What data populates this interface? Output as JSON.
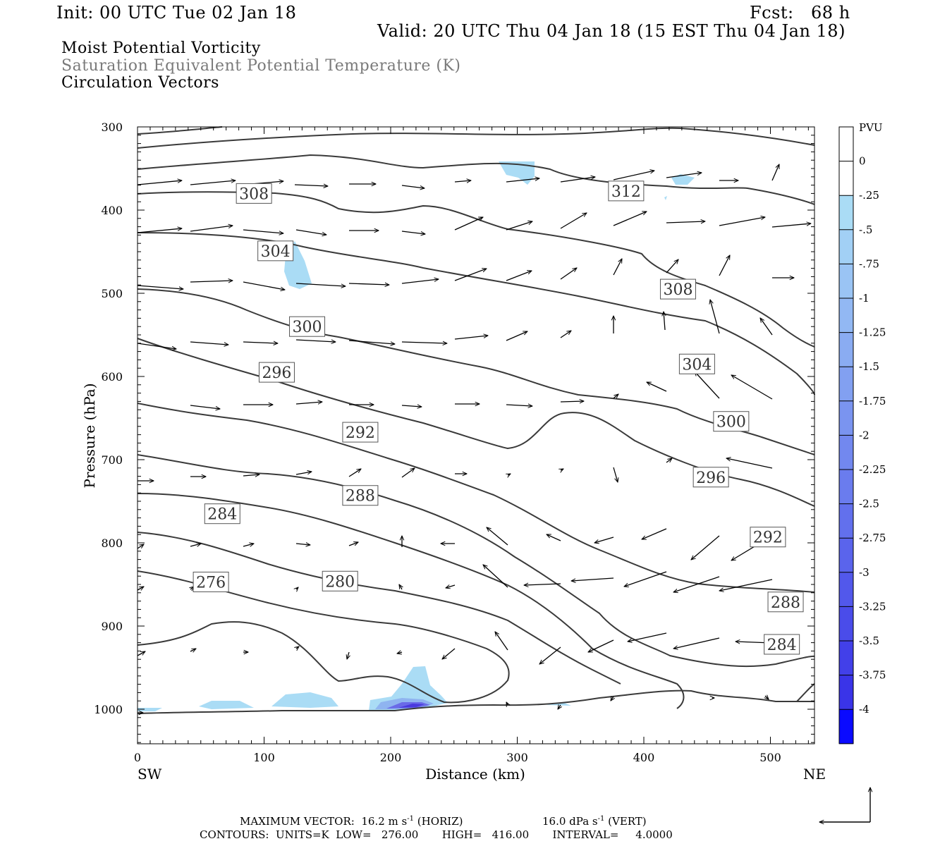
{
  "header": {
    "init": "Init: 00 UTC Tue 02 Jan 18",
    "fcst": "Fcst:   68 h",
    "valid": "Valid: 20 UTC Thu 04 Jan 18 (15 EST Thu 04 Jan 18)"
  },
  "titles": {
    "line1": "Moist Potential Vorticity",
    "line2": "Saturation Equivalent Potential Temperature (K)",
    "line3": "Circulation Vectors"
  },
  "footer": {
    "max_vector_prefix": "MAXIMUM VECTOR:  16.2 m s",
    "max_vector_horiz": "(HORIZ)",
    "max_vector_vert_prefix": "16.0 dPa s",
    "max_vector_vert": "(VERT)",
    "exponent": "-1",
    "contours": "CONTOURS:  UNITS=K  LOW=   276.00       HIGH=   416.00       INTERVAL=     4.0000"
  },
  "colors": {
    "contour": "#3a3a3a",
    "pv_light": "#aadcf5",
    "pv_mid": "#8fb4f0",
    "pv_dark": "#4a3adf"
  },
  "chart_data": {
    "type": "cross-section",
    "xlabel": "Distance (km)",
    "ylabel": "Pressure (hPa)",
    "xlim": [
      0,
      535
    ],
    "ylim": [
      1040,
      300
    ],
    "x_ticks": [
      0,
      100,
      200,
      300,
      400,
      500
    ],
    "y_ticks": [
      300,
      400,
      500,
      600,
      700,
      800,
      900,
      1000
    ],
    "left_end_label": "SW",
    "right_end_label": "NE",
    "colorbar": {
      "units": "PVU",
      "levels": [
        "0",
        "-.25",
        "-.5",
        "-.75",
        "-1",
        "-1.25",
        "-1.5",
        "-1.75",
        "-2",
        "-2.25",
        "-2.5",
        "-2.75",
        "-3",
        "-3.25",
        "-3.5",
        "-3.75",
        "-4"
      ],
      "colors": [
        "#ffffff",
        "#ffffff",
        "#aadcf5",
        "#a2d0f5",
        "#9ac4f4",
        "#92b8f3",
        "#8aacf2",
        "#82a0f1",
        "#7a94f0",
        "#7288ef",
        "#6a7cee",
        "#6270ed",
        "#5a64ec",
        "#5258eb",
        "#4a4cea",
        "#4240e9",
        "#3a34e8",
        "#0a0aff"
      ]
    },
    "contour_labels": [
      {
        "value": "308",
        "x": 92,
        "p": 380
      },
      {
        "value": "312",
        "x": 386,
        "p": 377
      },
      {
        "value": "304",
        "x": 109,
        "p": 449
      },
      {
        "value": "308",
        "x": 427,
        "p": 495
      },
      {
        "value": "300",
        "x": 134,
        "p": 540
      },
      {
        "value": "304",
        "x": 442,
        "p": 585
      },
      {
        "value": "296",
        "x": 110,
        "p": 595
      },
      {
        "value": "300",
        "x": 469,
        "p": 654
      },
      {
        "value": "292",
        "x": 176,
        "p": 667
      },
      {
        "value": "296",
        "x": 453,
        "p": 721
      },
      {
        "value": "288",
        "x": 176,
        "p": 743
      },
      {
        "value": "292",
        "x": 498,
        "p": 793
      },
      {
        "value": "284",
        "x": 67,
        "p": 765
      },
      {
        "value": "288",
        "x": 512,
        "p": 871
      },
      {
        "value": "276",
        "x": 58,
        "p": 847
      },
      {
        "value": "280",
        "x": 160,
        "p": 846
      },
      {
        "value": "284",
        "x": 509,
        "p": 922
      }
    ]
  }
}
